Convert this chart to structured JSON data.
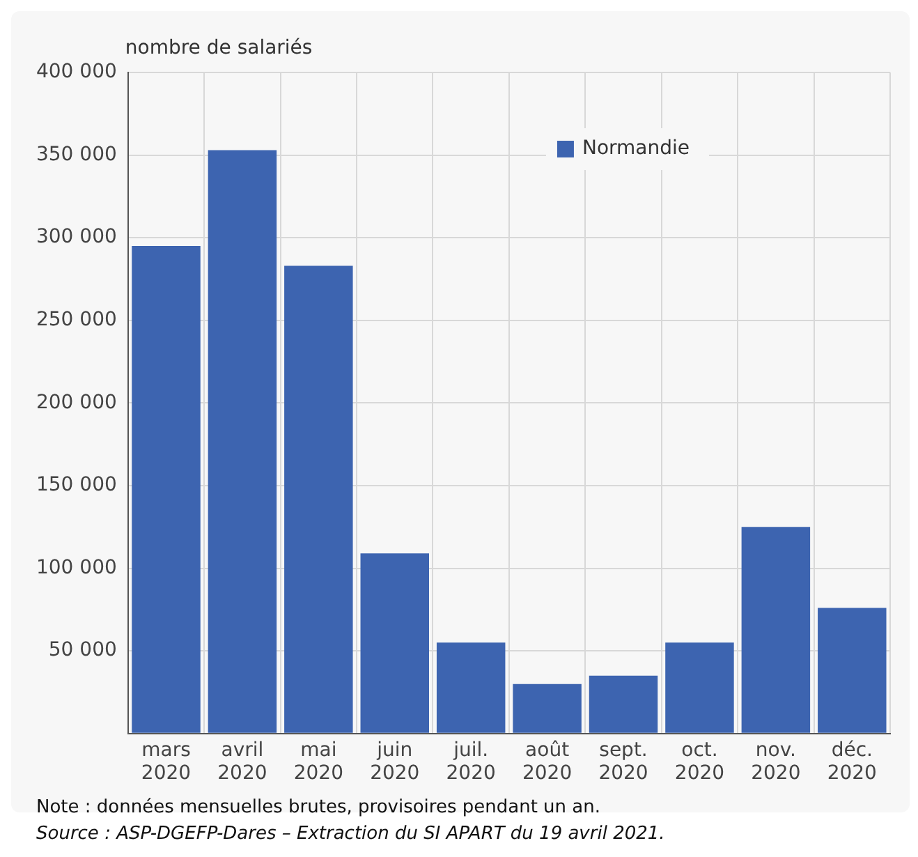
{
  "chart_data": {
    "type": "bar",
    "ylabel": "nombre de salariés",
    "categories": [
      "mars 2020",
      "avril 2020",
      "mai 2020",
      "juin 2020",
      "juil. 2020",
      "août 2020",
      "sept. 2020",
      "oct. 2020",
      "nov. 2020",
      "déc. 2020"
    ],
    "series": [
      {
        "name": "Normandie",
        "color": "#3d64b0",
        "values": [
          295000,
          353000,
          283000,
          109000,
          55000,
          30000,
          35000,
          55000,
          125000,
          76000
        ]
      }
    ],
    "ylim": [
      0,
      400000
    ],
    "yticks": [
      {
        "value": 0,
        "label": null
      },
      {
        "value": 50000,
        "label": "50 000"
      },
      {
        "value": 100000,
        "label": "100 000"
      },
      {
        "value": 150000,
        "label": "150 000"
      },
      {
        "value": 200000,
        "label": "200 000"
      },
      {
        "value": 250000,
        "label": "250 000"
      },
      {
        "value": 300000,
        "label": "300 000"
      },
      {
        "value": 350000,
        "label": "350 000"
      },
      {
        "value": 400000,
        "label": "400 000"
      }
    ],
    "grid": true,
    "legend": "top right",
    "annotations": [
      "Note : données mensuelles brutes, provisoires pendant un an.",
      "Source : ASP-DGEFP-Dares – Extraction du SI APART du 19 avril 2021."
    ]
  }
}
